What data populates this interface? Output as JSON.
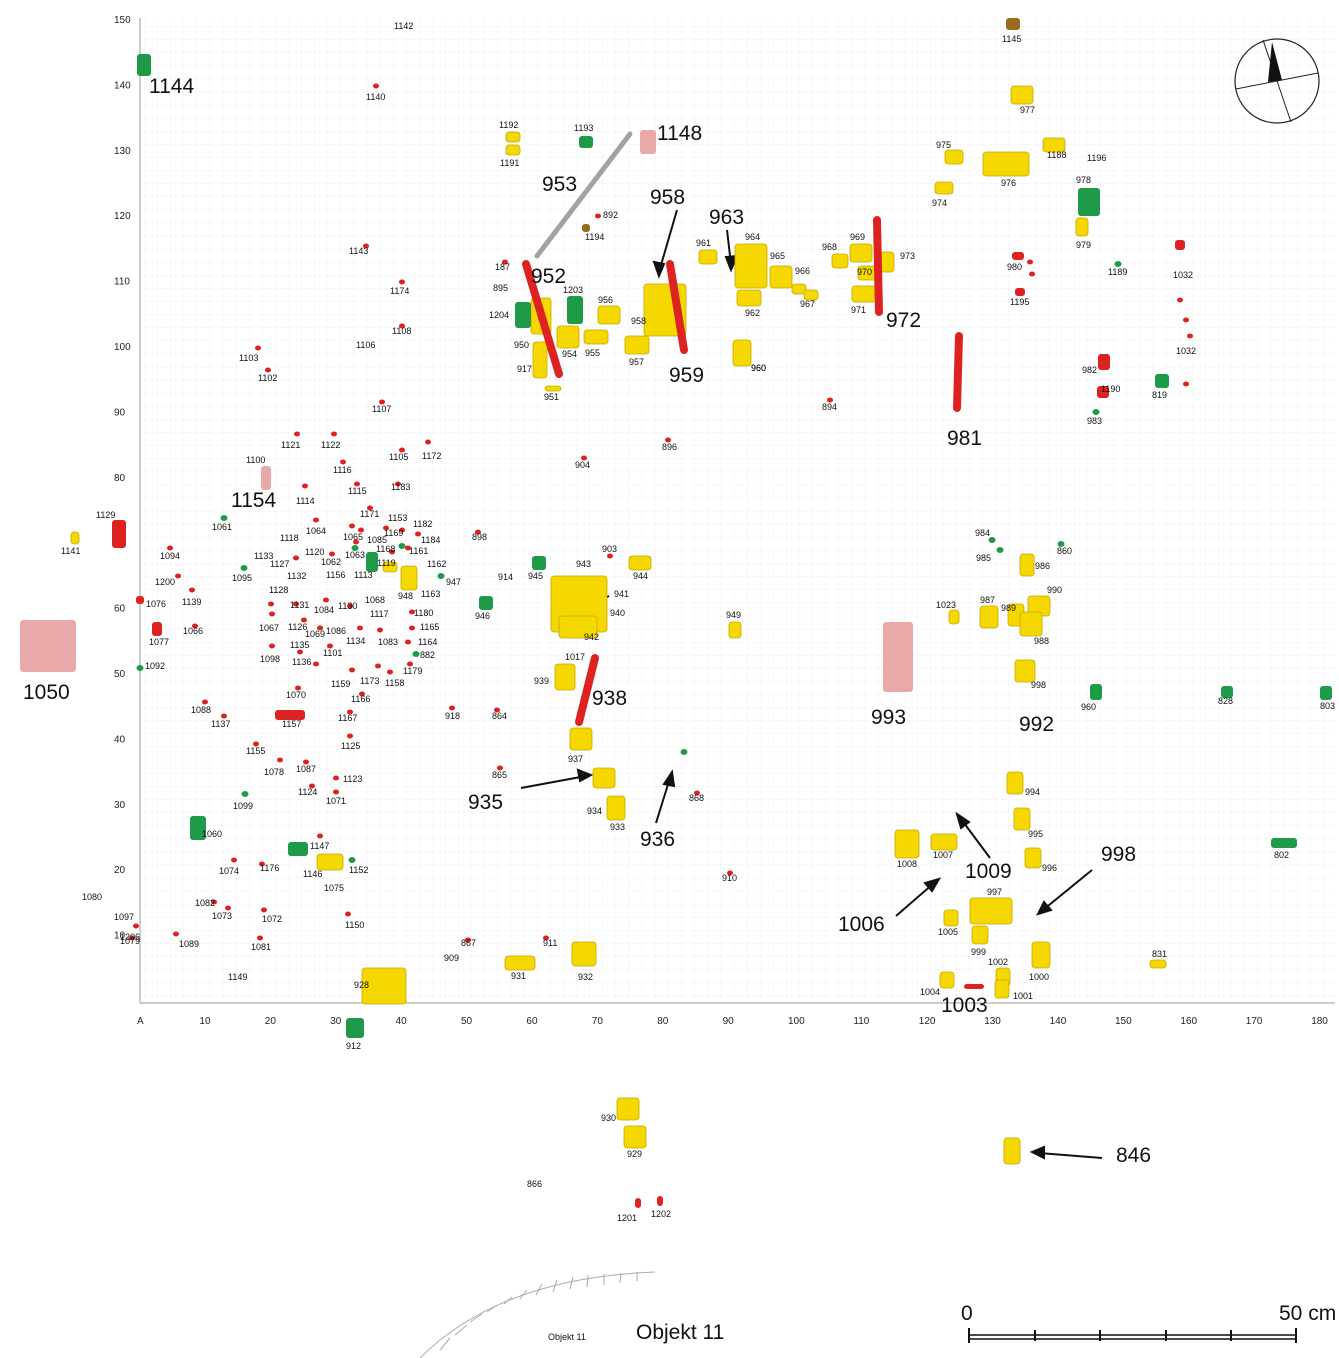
{
  "axes": {
    "y_ticks": [
      "150",
      "140",
      "130",
      "120",
      "110",
      "100",
      "90",
      "80",
      "70",
      "60",
      "50",
      "40",
      "30",
      "20",
      "10"
    ],
    "x_ticks": [
      "A",
      "10",
      "20",
      "30",
      "40",
      "50",
      "60",
      "70",
      "80",
      "90",
      "100",
      "110",
      "120",
      "130",
      "140",
      "150",
      "160",
      "170",
      "180"
    ]
  },
  "colors": {
    "ceramic": "#f5d800",
    "bone": "#dd2222",
    "bone_faded": "#e9a9a9",
    "metal": "#1f9a49",
    "stone": "#a2a2a2",
    "amber": "#9c6a1e",
    "grid": "#eef0f4",
    "axis": "#9a9a9a"
  },
  "finds": {
    "ceramic": [
      {
        "label": "977"
      },
      {
        "label": "975"
      },
      {
        "label": "976"
      },
      {
        "label": "974"
      },
      {
        "label": "1188"
      },
      {
        "label": "979"
      },
      {
        "label": "1192"
      },
      {
        "label": "1191"
      },
      {
        "label": "961"
      },
      {
        "label": "964"
      },
      {
        "label": "965"
      },
      {
        "label": "966"
      },
      {
        "label": "962"
      },
      {
        "label": "967"
      },
      {
        "label": "968"
      },
      {
        "label": "969"
      },
      {
        "label": "970"
      },
      {
        "label": "973"
      },
      {
        "label": "971"
      },
      {
        "label": "958"
      },
      {
        "label": "950"
      },
      {
        "label": "917"
      },
      {
        "label": "951"
      },
      {
        "label": "954"
      },
      {
        "label": "955"
      },
      {
        "label": "956"
      },
      {
        "label": "957"
      },
      {
        "label": "960"
      },
      {
        "label": "948"
      },
      {
        "label": "944"
      },
      {
        "label": "943"
      },
      {
        "label": "942"
      },
      {
        "label": "949"
      },
      {
        "label": "939"
      },
      {
        "label": "937"
      },
      {
        "label": "934"
      },
      {
        "label": "933"
      },
      {
        "label": "986"
      },
      {
        "label": "987"
      },
      {
        "label": "989"
      },
      {
        "label": "990"
      },
      {
        "label": "988"
      },
      {
        "label": "998"
      },
      {
        "label": "1023"
      },
      {
        "label": "994"
      },
      {
        "label": "995"
      },
      {
        "label": "996"
      },
      {
        "label": "1008"
      },
      {
        "label": "1007"
      },
      {
        "label": "997"
      },
      {
        "label": "1005"
      },
      {
        "label": "999"
      },
      {
        "label": "1002"
      },
      {
        "label": "1000"
      },
      {
        "label": "1004"
      },
      {
        "label": "1001"
      },
      {
        "label": "831"
      },
      {
        "label": "1146"
      },
      {
        "label": "931"
      },
      {
        "label": "932"
      },
      {
        "label": "928"
      },
      {
        "label": "930"
      },
      {
        "label": "929"
      },
      {
        "label": "1141"
      },
      {
        "label": "1119"
      }
    ],
    "bone": [
      {
        "label": "959"
      },
      {
        "label": "972"
      },
      {
        "label": "981"
      },
      {
        "label": "938"
      },
      {
        "label": "952"
      },
      {
        "label": "1129"
      },
      {
        "label": "1077"
      },
      {
        "label": "1076"
      },
      {
        "label": "1157"
      },
      {
        "label": "980"
      },
      {
        "label": "1195"
      },
      {
        "label": "982"
      },
      {
        "label": "1190"
      },
      {
        "label": "1032"
      },
      {
        "label": "1201"
      },
      {
        "label": "1202"
      },
      {
        "label": "1003"
      }
    ],
    "metal": [
      {
        "label": "1204"
      },
      {
        "label": "1203"
      },
      {
        "label": "978"
      },
      {
        "label": "945"
      },
      {
        "label": "946"
      },
      {
        "label": "960"
      },
      {
        "label": "828"
      },
      {
        "label": "803"
      },
      {
        "label": "802"
      },
      {
        "label": "819"
      },
      {
        "label": "1147"
      },
      {
        "label": "1060"
      },
      {
        "label": "912"
      },
      {
        "label": "1144"
      },
      {
        "label": "1193"
      },
      {
        "label": "1113"
      }
    ],
    "faded": [
      {
        "label": "1148"
      },
      {
        "label": "1154"
      },
      {
        "label": "1050"
      },
      {
        "label": "993"
      }
    ],
    "stone": [
      {
        "label": "953"
      }
    ],
    "amber": [
      {
        "label": "1145"
      },
      {
        "label": "1194"
      }
    ]
  },
  "small_labels": [
    "1142",
    "1140",
    "1143",
    "1174",
    "1108",
    "1106",
    "1103",
    "1102",
    "1107",
    "187",
    "895",
    "892",
    "1196",
    "1189",
    "983",
    "894",
    "896",
    "904",
    "898",
    "903",
    "914",
    "941",
    "940",
    "1017",
    "918",
    "864",
    "865",
    "868",
    "910",
    "867",
    "911",
    "909",
    "1121",
    "1122",
    "1100",
    "1105",
    "1172",
    "1116",
    "1115",
    "1183",
    "1114",
    "1061",
    "1094",
    "1118",
    "1064",
    "1171",
    "1153",
    "1182",
    "1169",
    "1184",
    "1065",
    "1085",
    "1161",
    "1168",
    "1062",
    "1063",
    "1133",
    "1127",
    "1120",
    "1132",
    "1156",
    "1162",
    "947",
    "1163",
    "1095",
    "1200",
    "1139",
    "1128",
    "1131",
    "1084",
    "1130",
    "1068",
    "1180",
    "1117",
    "1067",
    "1126",
    "1069",
    "1086",
    "1165",
    "1066",
    "1135",
    "1134",
    "1083",
    "1164",
    "882",
    "1098",
    "1136",
    "1101",
    "1179",
    "1159",
    "1173",
    "1158",
    "1092",
    "1070",
    "1166",
    "1088",
    "1137",
    "1167",
    "1155",
    "1125",
    "1078",
    "1087",
    "1123",
    "1124",
    "1071",
    "1099",
    "1074",
    "1176",
    "1152",
    "1075",
    "1080",
    "1082",
    "1073",
    "1072",
    "1150",
    "1097",
    "1079",
    "1089",
    "1081",
    "1149",
    "984",
    "985",
    "860",
    "866",
    "1206"
  ],
  "big_labels": [
    "1144",
    "1148",
    "953",
    "958",
    "963",
    "952",
    "959",
    "972",
    "981",
    "1154",
    "1050",
    "938",
    "935",
    "936",
    "993",
    "992",
    "998",
    "1009",
    "1006",
    "1003",
    "846"
  ],
  "compass": {
    "name": "north-arrow"
  },
  "scale": {
    "start": "0",
    "end": "50 cm"
  },
  "object": {
    "small": "Objekt 11",
    "large": "Objekt 11"
  }
}
